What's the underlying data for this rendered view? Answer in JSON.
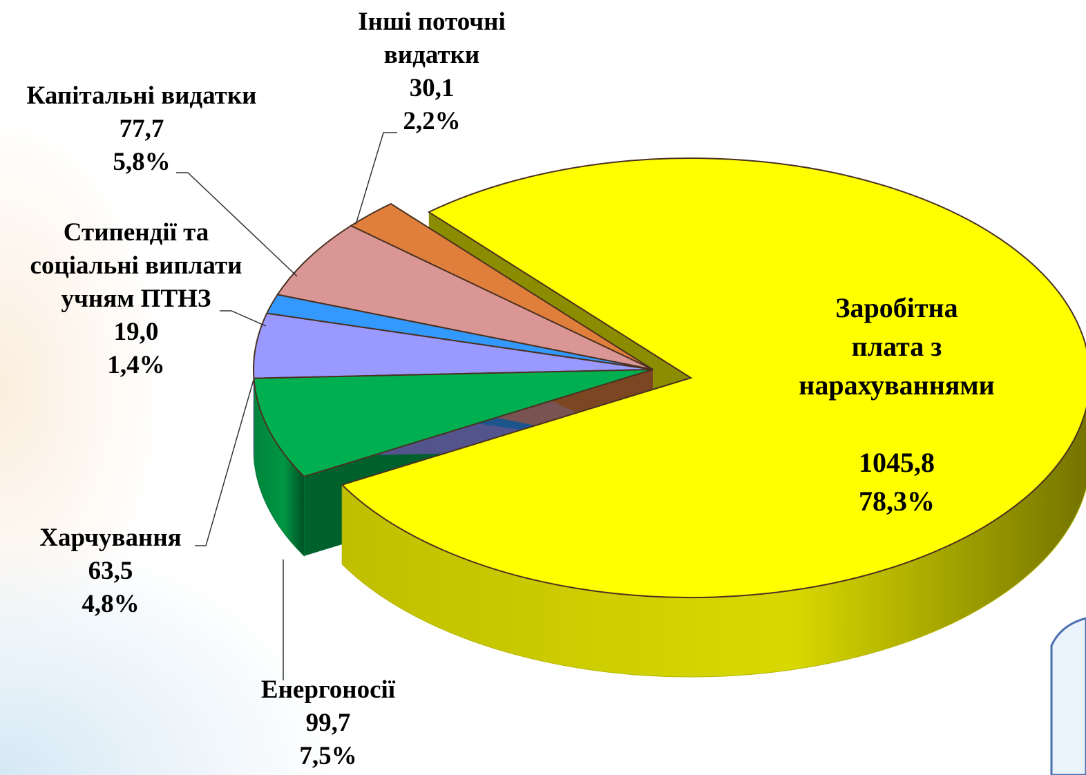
{
  "chart_data": {
    "type": "pie3d",
    "categories": [
      "Заробітна плата з\nнарахуваннями",
      "Енергоносії",
      "Харчування",
      "Стипендії та\nсоціальні виплати\nучням ПТНЗ",
      "Капітальні видатки",
      "Інші поточні\nвидатки"
    ],
    "values": [
      1045.8,
      99.7,
      63.5,
      19.0,
      77.7,
      30.1
    ],
    "value_labels": [
      "1045,8",
      "99,7",
      "63,5",
      "19,0",
      "77,7",
      "30,1"
    ],
    "percent_labels": [
      "78,3%",
      "7,5%",
      "4,8%",
      "1,4%",
      "5,8%",
      "2,2%"
    ],
    "colors": [
      "#ffff00",
      "#00b050",
      "#9999ff",
      "#3399ff",
      "#da9694",
      "#e07f3c"
    ]
  }
}
